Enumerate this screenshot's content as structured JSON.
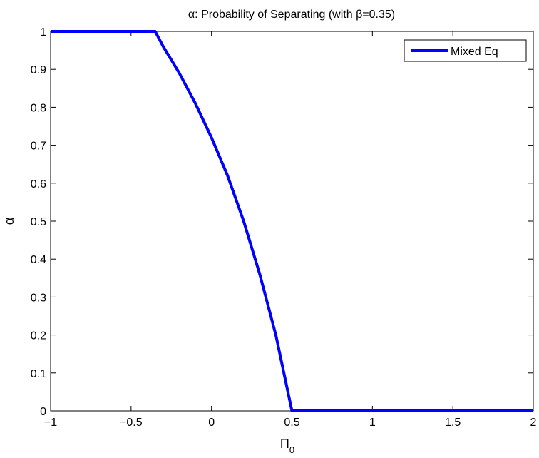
{
  "chart_data": {
    "type": "line",
    "title": "α: Probability of Separating (with β=0.35)",
    "xlabel": "Π",
    "xlabel_subscript": "0",
    "ylabel": "α",
    "xlim": [
      -1,
      2
    ],
    "ylim": [
      0,
      1
    ],
    "xticks": [
      -1,
      -0.5,
      0,
      0.5,
      1,
      1.5,
      2
    ],
    "xtick_labels": [
      "−1",
      "−0.5",
      "0",
      "0.5",
      "1",
      "1.5",
      "2"
    ],
    "yticks": [
      0,
      0.1,
      0.2,
      0.3,
      0.4,
      0.5,
      0.6,
      0.7,
      0.8,
      0.9,
      1
    ],
    "ytick_labels": [
      "0",
      "0.1",
      "0.2",
      "0.3",
      "0.4",
      "0.5",
      "0.6",
      "0.7",
      "0.8",
      "0.9",
      "1"
    ],
    "grid": false,
    "legend_position": "top-right",
    "series": [
      {
        "name": "Mixed Eq",
        "color": "#0000ff",
        "x": [
          -1,
          -0.35,
          -0.3,
          -0.2,
          -0.1,
          0,
          0.1,
          0.2,
          0.3,
          0.4,
          0.5,
          0.6,
          1,
          1.5,
          2
        ],
        "y": [
          1,
          1,
          0.96,
          0.89,
          0.81,
          0.72,
          0.62,
          0.5,
          0.36,
          0.2,
          0,
          0,
          0,
          0,
          0
        ]
      }
    ]
  }
}
